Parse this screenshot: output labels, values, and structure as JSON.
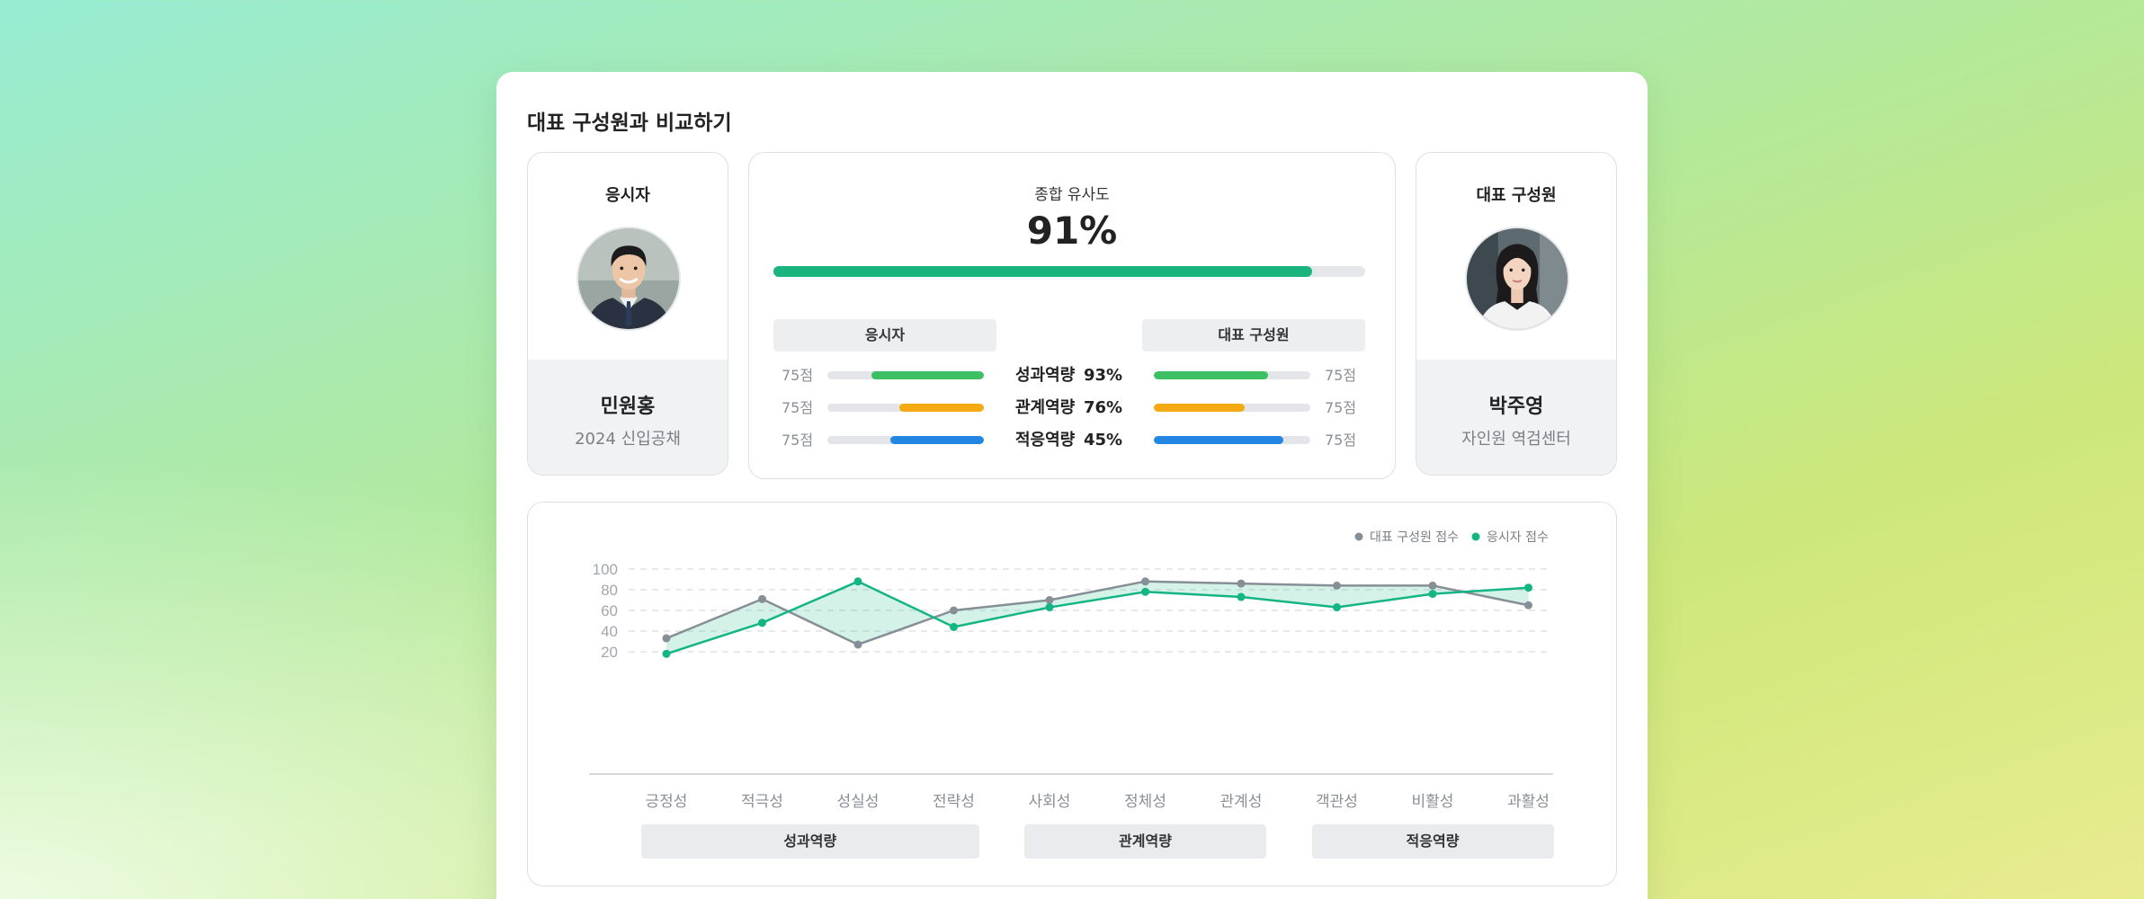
{
  "title": "대표 구성원과 비교하기",
  "applicant": {
    "label": "응시자",
    "name": "민원홍",
    "sub": "2024 신입공채",
    "icon": "male-avatar-photo"
  },
  "representative": {
    "label": "대표 구성원",
    "name": "박주영",
    "sub": "자인원 역검센터",
    "icon": "female-avatar-photo"
  },
  "similarity": {
    "title": "종합 유사도",
    "value": "91%",
    "progress": 0.91,
    "color": "#1cb47e",
    "left_header": "응시자",
    "right_header": "대표 구성원",
    "rows": [
      {
        "name": "성과역량",
        "pct": "93%",
        "left_score": "75점",
        "right_score": "75점",
        "color": "#3dbf63",
        "left_fill": 0.72,
        "right_fill": 0.73
      },
      {
        "name": "관계역량",
        "pct": "76%",
        "left_score": "75점",
        "right_score": "75점",
        "color": "#f5a912",
        "left_fill": 0.54,
        "right_fill": 0.58
      },
      {
        "name": "적응역량",
        "pct": "45%",
        "left_score": "75점",
        "right_score": "75점",
        "color": "#2386e0",
        "left_fill": 0.6,
        "right_fill": 0.83
      }
    ]
  },
  "chart_data": {
    "type": "line",
    "categories": [
      "긍정성",
      "적극성",
      "성실성",
      "전략성",
      "사회성",
      "정체성",
      "관계성",
      "객관성",
      "비활성",
      "과활성"
    ],
    "series": [
      {
        "name": "대표 구성원 점수",
        "color": "#868e96",
        "values": [
          33,
          71,
          27,
          60,
          70,
          88,
          86,
          84,
          84,
          65
        ]
      },
      {
        "name": "응시자 점수",
        "color": "#14b585",
        "values": [
          18,
          48,
          88,
          44,
          63,
          78,
          73,
          63,
          76,
          82
        ]
      }
    ],
    "yticks": [
      20,
      40,
      60,
      80,
      100
    ],
    "ylim": [
      0,
      100
    ],
    "grid": true,
    "legend": "top-right",
    "groups": [
      {
        "label": "성과역량",
        "span": [
          0,
          3
        ]
      },
      {
        "label": "관계역량",
        "span": [
          4,
          6
        ]
      },
      {
        "label": "적응역량",
        "span": [
          7,
          9
        ]
      }
    ]
  }
}
